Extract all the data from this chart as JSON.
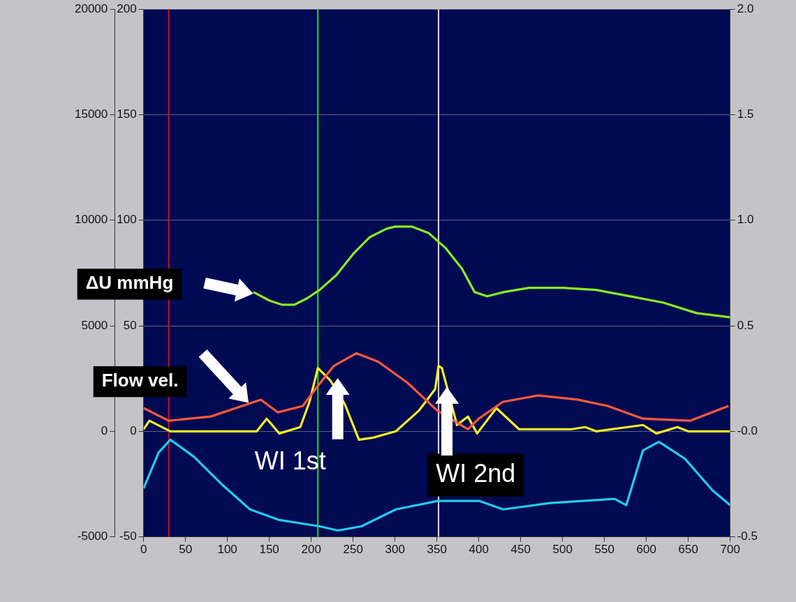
{
  "chart_data": {
    "type": "line",
    "marker": "none",
    "grid": "y",
    "legend": false,
    "xlim": [
      0,
      700
    ],
    "xticks": [
      0,
      50,
      100,
      150,
      200,
      250,
      300,
      350,
      400,
      450,
      500,
      550,
      600,
      650,
      700
    ],
    "ylim": [
      -50,
      200
    ],
    "yticks": [
      -50,
      0,
      50,
      100,
      150,
      200
    ],
    "y2lim": [
      -5000,
      20000
    ],
    "y2ticks": [
      -5000,
      0,
      5000,
      10000,
      15000,
      20000
    ],
    "y3lim": [
      -0.5,
      2.0
    ],
    "y3ticks": [
      {
        "value": -0.5,
        "label": "-0.5"
      },
      {
        "value": 0,
        "label": "-0.0"
      },
      {
        "value": 0.5,
        "label": "0.5"
      },
      {
        "value": 1.0,
        "label": "1.0"
      },
      {
        "value": 1.5,
        "label": "1.5"
      },
      {
        "value": 2.0,
        "label": "2.0"
      }
    ],
    "series": [
      {
        "color": "#88ee22",
        "x": [
          131,
          150,
          165,
          180,
          195,
          210,
          230,
          250,
          270,
          290,
          300,
          320,
          340,
          360,
          380,
          395,
          410,
          430,
          460,
          500,
          540,
          580,
          620,
          660,
          680,
          700
        ],
        "values": [
          66,
          62,
          60,
          60,
          63,
          67,
          74,
          84,
          92,
          96,
          97,
          97,
          94,
          87,
          77,
          66,
          64,
          66,
          68,
          68,
          67,
          64,
          61,
          56,
          55,
          54
        ]
      },
      {
        "color": "#ff5a3c",
        "x": [
          0,
          30,
          80,
          140,
          160,
          190,
          207,
          227,
          254,
          280,
          315,
          350,
          387,
          400,
          429,
          471,
          518,
          554,
          596,
          652,
          698
        ],
        "values": [
          11,
          5,
          7,
          15,
          9,
          12,
          21,
          31,
          37,
          33,
          23,
          10,
          1,
          6,
          14,
          17,
          15,
          12,
          6,
          5,
          12
        ]
      },
      {
        "color": "#f5f022",
        "x": [
          0,
          7,
          32,
          80,
          135,
          147,
          162,
          187,
          198,
          208,
          223,
          240,
          257,
          274,
          301,
          329,
          348,
          352,
          356,
          374,
          387,
          398,
          421,
          448,
          511,
          527,
          540,
          596,
          612,
          637,
          650,
          700
        ],
        "values": [
          1,
          5,
          0,
          0,
          0,
          6,
          -1,
          2,
          14,
          30,
          24,
          13,
          -4,
          -3,
          0,
          10,
          20,
          31,
          30,
          3,
          7,
          -1,
          11,
          1,
          1,
          2,
          0,
          3,
          -1,
          2,
          0,
          0
        ]
      },
      {
        "color": "#22ccee",
        "x": [
          0,
          18,
          32,
          60,
          93,
          127,
          162,
          210,
          232,
          260,
          301,
          351,
          401,
          429,
          485,
          562,
          576,
          596,
          615,
          646,
          679,
          700
        ],
        "values": [
          -27,
          -10,
          -4,
          -12,
          -25,
          -37,
          -42,
          -45,
          -47,
          -45,
          -37,
          -33,
          -33,
          -37,
          -34,
          -32,
          -35,
          -9,
          -5,
          -13,
          -28,
          -35
        ]
      }
    ],
    "ref_lines": [
      {
        "axis": "x",
        "value": 30,
        "color": "#cc1020"
      },
      {
        "axis": "x",
        "value": 208,
        "color": "#22dd22"
      },
      {
        "axis": "x",
        "value": 352,
        "color": "#dcdce8"
      }
    ],
    "annotations": [
      "ΔU mmHg",
      "Flow vel.",
      "WI 1st",
      {
        "text": "WI 2nd",
        "x": 362,
        "y": 21
      }
    ]
  }
}
